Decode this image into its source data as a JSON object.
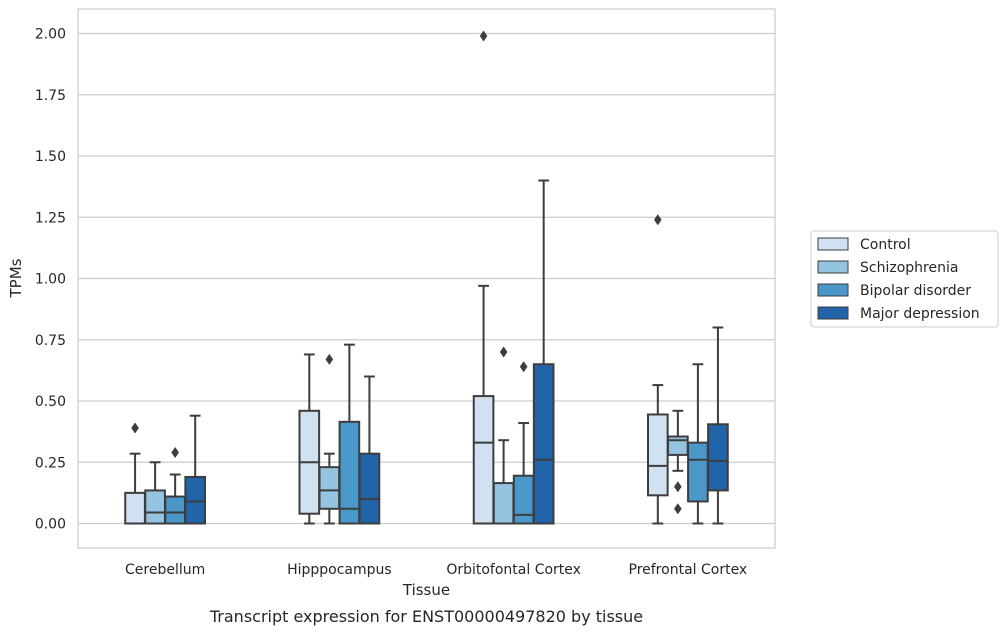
{
  "caption": "Transcript expression for ENST00000497820 by tissue",
  "chart_data": {
    "type": "box",
    "xlabel": "Tissue",
    "ylabel": "TPMs",
    "ylim": [
      -0.1,
      2.1
    ],
    "yticks": [
      0.0,
      0.25,
      0.5,
      0.75,
      1.0,
      1.25,
      1.5,
      1.75,
      2.0
    ],
    "ytick_labels": [
      "0.00",
      "0.25",
      "0.50",
      "0.75",
      "1.00",
      "1.25",
      "1.50",
      "1.75",
      "2.00"
    ],
    "grid": "horizontal",
    "legend_position": "right",
    "categories": [
      "Cerebellum",
      "Hipppocampus",
      "Orbitofontal Cortex",
      "Prefrontal Cortex"
    ],
    "series": [
      {
        "name": "Control",
        "color": "#d0e1f2",
        "boxes": [
          {
            "whislo": 0.0,
            "q1": 0.0,
            "med": 0.0,
            "q3": 0.125,
            "whishi": 0.285,
            "fliers": [
              0.39
            ]
          },
          {
            "whislo": 0.0,
            "q1": 0.04,
            "med": 0.25,
            "q3": 0.46,
            "whishi": 0.69,
            "fliers": []
          },
          {
            "whislo": 0.0,
            "q1": 0.0,
            "med": 0.33,
            "q3": 0.52,
            "whishi": 0.97,
            "fliers": [
              1.99
            ]
          },
          {
            "whislo": 0.0,
            "q1": 0.115,
            "med": 0.235,
            "q3": 0.445,
            "whishi": 0.565,
            "fliers": [
              1.24
            ]
          }
        ]
      },
      {
        "name": "Schizophrenia",
        "color": "#94c4df",
        "boxes": [
          {
            "whislo": 0.0,
            "q1": 0.0,
            "med": 0.045,
            "q3": 0.135,
            "whishi": 0.25,
            "fliers": []
          },
          {
            "whislo": 0.0,
            "q1": 0.06,
            "med": 0.135,
            "q3": 0.23,
            "whishi": 0.285,
            "fliers": [
              0.67
            ]
          },
          {
            "whislo": 0.0,
            "q1": 0.0,
            "med": 0.0,
            "q3": 0.165,
            "whishi": 0.34,
            "fliers": [
              0.7
            ]
          },
          {
            "whislo": 0.215,
            "q1": 0.28,
            "med": 0.34,
            "q3": 0.355,
            "whishi": 0.46,
            "fliers": [
              0.15,
              0.06
            ]
          }
        ]
      },
      {
        "name": "Bipolar disorder",
        "color": "#4a98c9",
        "boxes": [
          {
            "whislo": 0.0,
            "q1": 0.0,
            "med": 0.045,
            "q3": 0.11,
            "whishi": 0.2,
            "fliers": [
              0.29
            ]
          },
          {
            "whislo": 0.0,
            "q1": 0.0,
            "med": 0.06,
            "q3": 0.415,
            "whishi": 0.73,
            "fliers": []
          },
          {
            "whislo": 0.0,
            "q1": 0.0,
            "med": 0.035,
            "q3": 0.195,
            "whishi": 0.41,
            "fliers": [
              0.64
            ]
          },
          {
            "whislo": 0.0,
            "q1": 0.09,
            "med": 0.26,
            "q3": 0.33,
            "whishi": 0.65,
            "fliers": []
          }
        ]
      },
      {
        "name": "Major depression",
        "color": "#2264aa",
        "boxes": [
          {
            "whislo": 0.0,
            "q1": 0.0,
            "med": 0.09,
            "q3": 0.19,
            "whishi": 0.44,
            "fliers": []
          },
          {
            "whislo": 0.0,
            "q1": 0.0,
            "med": 0.1,
            "q3": 0.285,
            "whishi": 0.6,
            "fliers": []
          },
          {
            "whislo": 0.0,
            "q1": 0.0,
            "med": 0.26,
            "q3": 0.65,
            "whishi": 1.4,
            "fliers": []
          },
          {
            "whislo": 0.0,
            "q1": 0.135,
            "med": 0.255,
            "q3": 0.405,
            "whishi": 0.8,
            "fliers": []
          }
        ]
      }
    ]
  }
}
